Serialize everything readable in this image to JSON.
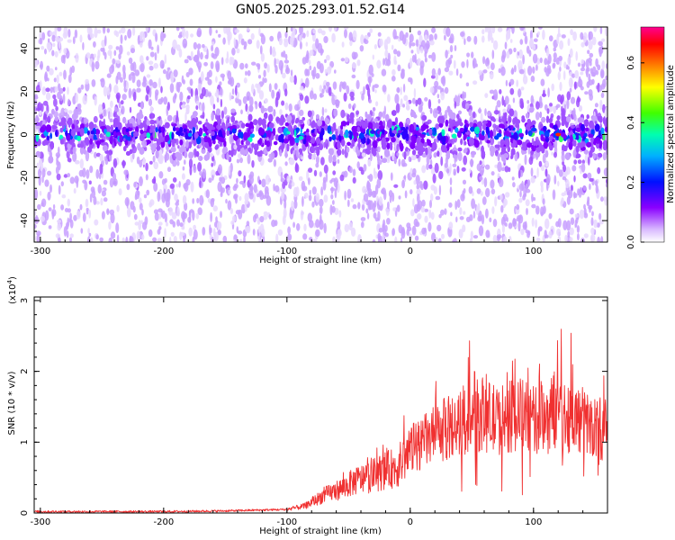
{
  "title": "GN05.2025.293.01.52.G14",
  "chart_data": [
    {
      "type": "heatmap",
      "panel": "spectrogram",
      "xlabel": "Height of straight line (km)",
      "ylabel": "Frequency (Hz)",
      "xlim": [
        -305,
        160
      ],
      "ylim": [
        -50,
        50
      ],
      "x_ticks": [
        -300,
        -200,
        -100,
        0,
        100
      ],
      "y_ticks": [
        -40,
        -20,
        0,
        20,
        40
      ],
      "x_tick_labels": [
        "-300",
        "-200",
        "-100",
        "0",
        "100"
      ],
      "y_tick_labels": [
        "-40",
        "-20",
        "0",
        "20",
        "40"
      ],
      "colorbar": {
        "label": "Normalized spectral amplitude",
        "range": [
          0,
          0.72
        ],
        "ticks": [
          0,
          0.2,
          0.4,
          0.6
        ],
        "tick_labels": [
          "0.0",
          "0.2",
          "0.4",
          "0.6"
        ],
        "colormap": [
          "#ffffff",
          "#c8a0ff",
          "#8000ff",
          "#0000ff",
          "#00ffff",
          "#00ff00",
          "#ffff00",
          "#ff8000",
          "#ff0000",
          "#ff00ff"
        ]
      },
      "band_center_hz": 0,
      "band_halfwidth_hz": 5,
      "peak_amplitude": 0.7,
      "peak_location": {
        "x": 120,
        "y": 0
      }
    },
    {
      "type": "line",
      "panel": "snr",
      "xlabel": "Height of straight line (km)",
      "ylabel": "SNR (10 * v/v)",
      "y_multiplier_label": "(x10",
      "y_multiplier_exp": "4",
      "y_multiplier_close": ")",
      "xlim": [
        -305,
        160
      ],
      "ylim": [
        0,
        3.05
      ],
      "x_ticks": [
        -300,
        -200,
        -100,
        0,
        100
      ],
      "y_ticks": [
        0,
        1,
        2,
        3
      ],
      "x_tick_labels": [
        "-300",
        "-200",
        "-100",
        "0",
        "100"
      ],
      "y_tick_labels": [
        "0",
        "1",
        "2",
        "3"
      ],
      "series_color": "#f03030",
      "envelope_x": [
        -305,
        -250,
        -200,
        -150,
        -100,
        -85,
        -70,
        -55,
        -45,
        -35,
        -20,
        -10,
        0,
        10,
        20,
        30,
        40,
        50,
        60,
        70,
        80,
        90,
        100,
        110,
        120,
        130,
        140,
        150,
        160
      ],
      "envelope_y": [
        0.02,
        0.02,
        0.02,
        0.03,
        0.05,
        0.1,
        0.25,
        0.35,
        0.45,
        0.5,
        0.6,
        0.65,
        0.9,
        1.0,
        1.1,
        1.2,
        1.25,
        1.35,
        1.4,
        1.3,
        1.35,
        1.4,
        1.3,
        1.4,
        1.45,
        1.35,
        1.3,
        1.2,
        1.2
      ]
    }
  ]
}
